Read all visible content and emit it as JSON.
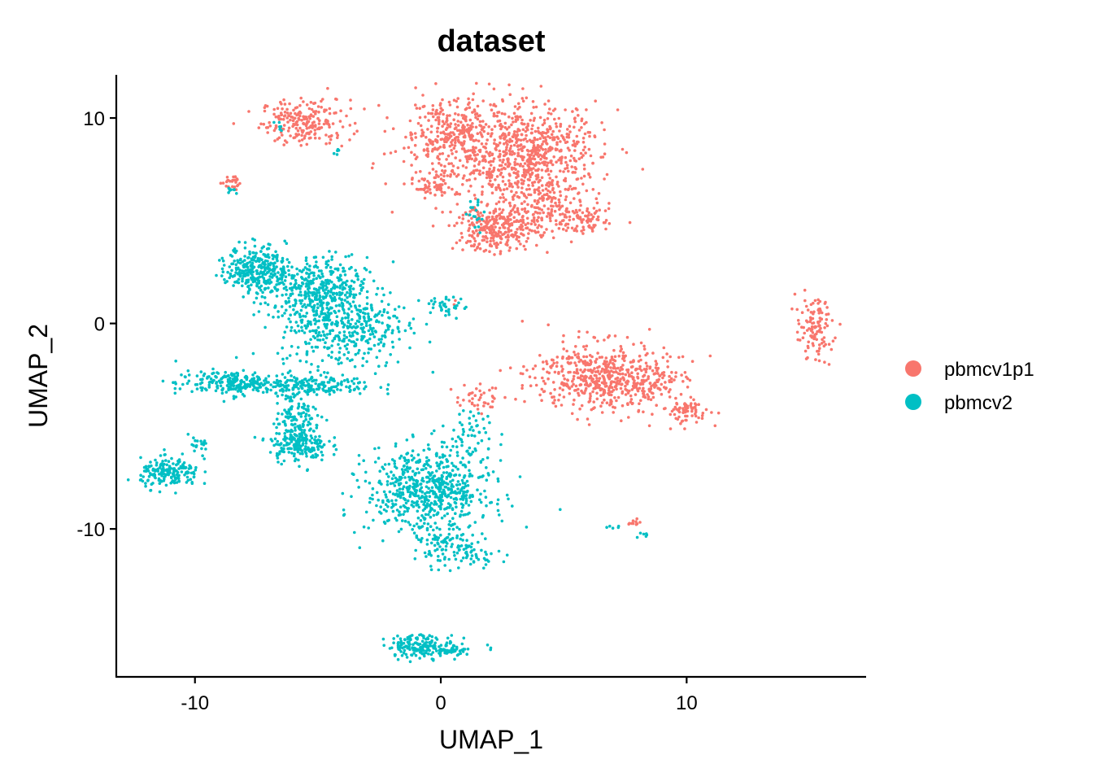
{
  "colors": {
    "pbmcv1p1": "#F8766D",
    "pbmcv2": "#00BFC4",
    "axis": "#000000",
    "background": "#FFFFFF"
  },
  "chart_data": {
    "type": "scatter",
    "title": "dataset",
    "xlabel": "UMAP_1",
    "ylabel": "UMAP_2",
    "xlim": [
      -13.2,
      17.3
    ],
    "ylim": [
      -17.2,
      12.1
    ],
    "x_ticks": [
      -10,
      0,
      10
    ],
    "x_tick_labels": [
      "-10",
      "0",
      "10"
    ],
    "y_ticks": [
      -10,
      0,
      10
    ],
    "y_tick_labels": [
      "-10",
      "0",
      "10"
    ],
    "grid": false,
    "legend_position": "right",
    "legend": [
      {
        "name": "pbmcv1p1",
        "color": "#F8766D"
      },
      {
        "name": "pbmcv2",
        "color": "#00BFC4"
      }
    ],
    "series": [
      {
        "name": "pbmcv1p1",
        "color": "#F8766D",
        "clusters": [
          {
            "cx": -5.5,
            "cy": 9.8,
            "sx": 0.9,
            "sy": 0.55,
            "n": 220
          },
          {
            "cx": -8.6,
            "cy": 6.9,
            "sx": 0.18,
            "sy": 0.2,
            "n": 25
          },
          {
            "cx": 0.2,
            "cy": 9.3,
            "sx": 1.0,
            "sy": 0.8,
            "n": 260
          },
          {
            "cx": 3.6,
            "cy": 8.4,
            "sx": 1.45,
            "sy": 1.15,
            "n": 640
          },
          {
            "cx": 1.8,
            "cy": 7.2,
            "sx": 1.8,
            "sy": 0.9,
            "n": 160
          },
          {
            "cx": -0.3,
            "cy": 6.6,
            "sx": 0.4,
            "sy": 0.25,
            "n": 45
          },
          {
            "cx": 2.3,
            "cy": 4.6,
            "sx": 0.85,
            "sy": 0.55,
            "n": 280
          },
          {
            "cx": 5.6,
            "cy": 5.0,
            "sx": 0.85,
            "sy": 0.35,
            "n": 110
          },
          {
            "cx": 4.0,
            "cy": 6.0,
            "sx": 0.8,
            "sy": 0.6,
            "n": 120
          },
          {
            "cx": 6.5,
            "cy": -2.6,
            "sx": 1.35,
            "sy": 0.85,
            "n": 520
          },
          {
            "cx": 8.6,
            "cy": -2.9,
            "sx": 0.65,
            "sy": 0.3,
            "n": 70
          },
          {
            "cx": 10.0,
            "cy": -4.3,
            "sx": 0.5,
            "sy": 0.3,
            "n": 70
          },
          {
            "cx": 15.2,
            "cy": -0.3,
            "sx": 0.38,
            "sy": 0.75,
            "n": 110
          },
          {
            "cx": 1.5,
            "cy": -3.6,
            "sx": 0.45,
            "sy": 0.35,
            "n": 40
          },
          {
            "cx": 0.5,
            "cy": 1.0,
            "sx": 0.1,
            "sy": 0.1,
            "n": 3
          },
          {
            "cx": 7.9,
            "cy": -9.7,
            "sx": 0.2,
            "sy": 0.08,
            "n": 10
          }
        ]
      },
      {
        "name": "pbmcv2",
        "color": "#00BFC4",
        "clusters": [
          {
            "cx": -7.5,
            "cy": 2.7,
            "sx": 0.6,
            "sy": 0.55,
            "n": 280
          },
          {
            "cx": -5.2,
            "cy": 1.7,
            "sx": 1.1,
            "sy": 0.75,
            "n": 340
          },
          {
            "cx": -4.0,
            "cy": 0.0,
            "sx": 1.3,
            "sy": 1.1,
            "n": 460
          },
          {
            "cx": -8.6,
            "cy": -2.9,
            "sx": 1.1,
            "sy": 0.3,
            "n": 200
          },
          {
            "cx": -5.5,
            "cy": -3.0,
            "sx": 1.4,
            "sy": 0.25,
            "n": 170
          },
          {
            "cx": -5.8,
            "cy": -4.5,
            "sx": 0.45,
            "sy": 0.8,
            "n": 150
          },
          {
            "cx": -5.8,
            "cy": -5.9,
            "sx": 0.6,
            "sy": 0.4,
            "n": 160
          },
          {
            "cx": -11.0,
            "cy": -7.3,
            "sx": 0.6,
            "sy": 0.35,
            "n": 180
          },
          {
            "cx": -9.9,
            "cy": -6.0,
            "sx": 0.3,
            "sy": 0.3,
            "n": 20
          },
          {
            "cx": -0.5,
            "cy": -8.1,
            "sx": 1.25,
            "sy": 1.05,
            "n": 650
          },
          {
            "cx": 0.1,
            "cy": -10.9,
            "sx": 0.55,
            "sy": 0.5,
            "n": 70
          },
          {
            "cx": 1.3,
            "cy": -11.1,
            "sx": 0.55,
            "sy": 0.35,
            "n": 50
          },
          {
            "cx": -0.8,
            "cy": -15.7,
            "sx": 0.7,
            "sy": 0.28,
            "n": 170
          },
          {
            "cx": 0.5,
            "cy": -15.9,
            "sx": 0.3,
            "sy": 0.15,
            "n": 40
          },
          {
            "cx": 0.2,
            "cy": 0.8,
            "sx": 0.4,
            "sy": 0.25,
            "n": 35
          },
          {
            "cx": 1.3,
            "cy": -5.2,
            "sx": 0.5,
            "sy": 0.7,
            "n": 45
          },
          {
            "cx": -8.5,
            "cy": 6.5,
            "sx": 0.12,
            "sy": 0.08,
            "n": 8
          },
          {
            "cx": -6.6,
            "cy": 9.6,
            "sx": 0.1,
            "sy": 0.12,
            "n": 6
          },
          {
            "cx": -4.3,
            "cy": 8.4,
            "sx": 0.08,
            "sy": 0.1,
            "n": 5
          },
          {
            "cx": 1.4,
            "cy": 5.4,
            "sx": 0.2,
            "sy": 0.45,
            "n": 18
          },
          {
            "cx": 8.2,
            "cy": -10.3,
            "sx": 0.1,
            "sy": 0.1,
            "n": 6
          },
          {
            "cx": 7.0,
            "cy": -9.9,
            "sx": 0.2,
            "sy": 0.05,
            "n": 5
          },
          {
            "cx": 2.0,
            "cy": -15.8,
            "sx": 0.08,
            "sy": 0.05,
            "n": 3
          }
        ]
      }
    ]
  }
}
